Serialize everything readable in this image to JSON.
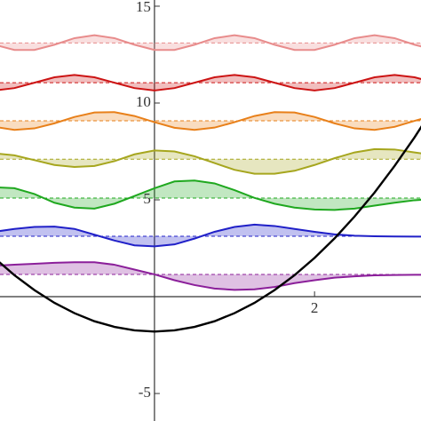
{
  "chart_data": {
    "type": "line",
    "x": [
      -2,
      -1.75,
      -1.5,
      -1.25,
      -1,
      -0.75,
      -0.5,
      -0.25,
      0,
      0.25,
      0.5,
      0.75,
      1,
      1.25,
      1.5,
      1.75,
      2,
      2.25,
      2.5,
      2.75,
      3,
      3.25,
      3.5
    ],
    "xlim": [
      -1.93,
      3.33
    ],
    "ylim": [
      -6.42,
      15.32
    ],
    "xticks": [
      2
    ],
    "yticks": [
      -5,
      5,
      10,
      15
    ],
    "potential": {
      "color": "#000000",
      "values": [
        2.0,
        1.11,
        0.34,
        -0.32,
        -0.85,
        -1.27,
        -1.56,
        -1.74,
        -1.8,
        -1.74,
        -1.56,
        -1.27,
        -0.85,
        -0.32,
        0.34,
        1.11,
        2.0,
        3.01,
        4.14,
        5.38,
        6.75,
        8.23,
        9.84
      ]
    },
    "series": [
      {
        "color": "#8b1f9a",
        "level": 1.15,
        "values": [
          1.6,
          1.65,
          1.7,
          1.75,
          1.78,
          1.78,
          1.65,
          1.4,
          1.15,
          0.85,
          0.6,
          0.42,
          0.35,
          0.38,
          0.5,
          0.7,
          0.85,
          0.98,
          1.05,
          1.1,
          1.12,
          1.13,
          1.14
        ]
      },
      {
        "color": "#2020c8",
        "level": 3.12,
        "values": [
          3.35,
          3.5,
          3.6,
          3.62,
          3.5,
          3.2,
          2.9,
          2.65,
          2.6,
          2.7,
          3.0,
          3.35,
          3.6,
          3.72,
          3.65,
          3.5,
          3.35,
          3.22,
          3.15,
          3.12,
          3.11,
          3.1,
          3.1
        ]
      },
      {
        "color": "#1fa81f",
        "level": 5.09,
        "values": [
          5.65,
          5.6,
          5.3,
          4.85,
          4.6,
          4.55,
          4.8,
          5.2,
          5.6,
          5.95,
          6.0,
          5.85,
          5.5,
          5.1,
          4.8,
          4.6,
          4.5,
          4.48,
          4.55,
          4.7,
          4.85,
          4.98,
          5.05
        ]
      },
      {
        "color": "#a6a61e",
        "level": 7.1,
        "values": [
          7.4,
          7.3,
          7.05,
          6.8,
          6.7,
          6.75,
          7.0,
          7.35,
          7.55,
          7.5,
          7.25,
          6.9,
          6.55,
          6.35,
          6.35,
          6.5,
          6.8,
          7.15,
          7.45,
          7.62,
          7.6,
          7.45,
          7.3
        ]
      },
      {
        "color": "#e8801a",
        "level": 9.08,
        "values": [
          8.77,
          8.61,
          8.69,
          8.95,
          9.28,
          9.51,
          9.53,
          9.33,
          9.01,
          8.72,
          8.61,
          8.73,
          9.01,
          9.33,
          9.53,
          9.51,
          9.28,
          8.95,
          8.69,
          8.61,
          8.77,
          9.08,
          9.37
        ]
      },
      {
        "color": "#cc1414",
        "level": 11.05,
        "values": [
          10.65,
          10.77,
          11.05,
          11.33,
          11.45,
          11.33,
          11.05,
          10.77,
          10.65,
          10.77,
          11.05,
          11.33,
          11.45,
          11.33,
          11.05,
          10.77,
          10.65,
          10.77,
          11.05,
          11.33,
          11.45,
          11.33,
          11.05
        ]
      },
      {
        "color": "#e88c8c",
        "level": 13.1,
        "values": [
          13.01,
          12.74,
          12.74,
          13.01,
          13.35,
          13.5,
          13.35,
          13.01,
          12.74,
          12.74,
          13.01,
          13.35,
          13.5,
          13.35,
          13.01,
          12.74,
          12.74,
          13.01,
          13.35,
          13.5,
          13.35,
          13.01,
          12.74
        ]
      }
    ]
  }
}
